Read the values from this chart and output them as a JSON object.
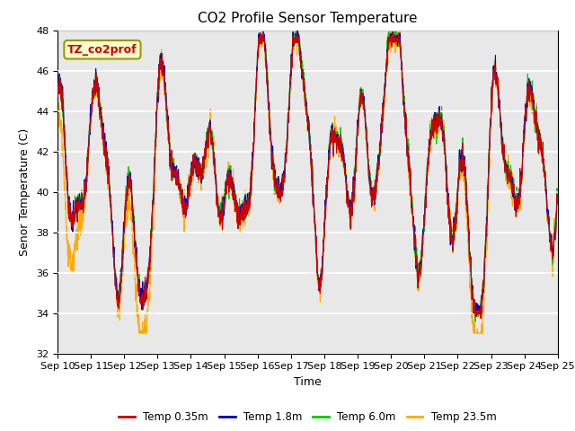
{
  "title": "CO2 Profile Sensor Temperature",
  "xlabel": "Time",
  "ylabel": "Senor Temperature (C)",
  "ylim": [
    32,
    48
  ],
  "xlim": [
    0,
    15
  ],
  "xtick_labels": [
    "Sep 10",
    "Sep 11",
    "Sep 12",
    "Sep 13",
    "Sep 14",
    "Sep 15",
    "Sep 16",
    "Sep 17",
    "Sep 18",
    "Sep 19",
    "Sep 20",
    "Sep 21",
    "Sep 22",
    "Sep 23",
    "Sep 24",
    "Sep 25"
  ],
  "annotation_text": "TZ_co2prof",
  "annotation_color": "#cc0000",
  "annotation_bg": "#ffffcc",
  "annotation_edge": "#999900",
  "line_colors": [
    "#cc0000",
    "#0000cc",
    "#00cc00",
    "#ffaa00"
  ],
  "line_labels": [
    "Temp 0.35m",
    "Temp 1.8m",
    "Temp 6.0m",
    "Temp 23.5m"
  ],
  "bg_color": "#e8e8e8",
  "fig_bg": "#ffffff",
  "title_fontsize": 11,
  "label_fontsize": 9,
  "tick_fontsize": 8
}
